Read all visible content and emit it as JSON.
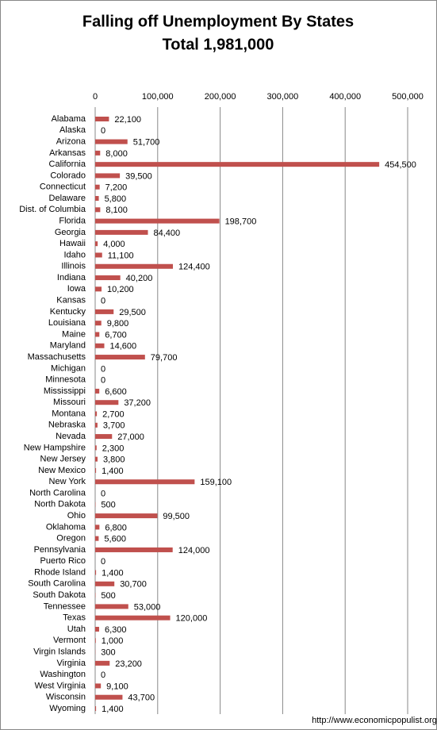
{
  "chart_data": {
    "type": "bar",
    "orientation": "horizontal",
    "title": "Falling off Unemployment By States",
    "subtitle": "Total  1,981,000",
    "source": "http://www.economicpopulist.org",
    "color": "#c0504d",
    "grid": true,
    "xlim": [
      0,
      500000
    ],
    "xticks": [
      0,
      {
        "value": 100000,
        "label": "100,000"
      },
      {
        "value": 200000,
        "label": "200,000"
      },
      {
        "value": 300000,
        "label": "300,000"
      },
      {
        "value": 400000,
        "label": "400,000"
      },
      {
        "value": 500000,
        "label": "500,000"
      }
    ],
    "categories": [
      "Alabama",
      "Alaska",
      "Arizona",
      "Arkansas",
      "California",
      "Colorado",
      "Connecticut",
      "Delaware",
      "Dist. of Columbia",
      "Florida",
      "Georgia",
      "Hawaii",
      "Idaho",
      "Illinois",
      "Indiana",
      "Iowa",
      "Kansas",
      "Kentucky",
      "Louisiana",
      "Maine",
      "Maryland",
      "Massachusetts",
      "Michigan",
      "Minnesota",
      "Mississippi",
      "Missouri",
      "Montana",
      "Nebraska",
      "Nevada",
      "New Hampshire",
      "New Jersey",
      "New Mexico",
      "New York",
      "North Carolina",
      "North Dakota",
      "Ohio",
      "Oklahoma",
      "Oregon",
      "Pennsylvania",
      "Puerto Rico",
      "Rhode Island",
      "South Carolina",
      "South Dakota",
      "Tennessee",
      "Texas",
      "Utah",
      "Vermont",
      "Virgin Islands",
      "Virginia",
      "Washington",
      "West Virginia",
      "Wisconsin",
      "Wyoming"
    ],
    "values": [
      22100,
      0,
      51700,
      8000,
      454500,
      39500,
      7200,
      5800,
      8100,
      198700,
      84400,
      4000,
      11100,
      124400,
      40200,
      10200,
      0,
      29500,
      9800,
      6700,
      14600,
      79700,
      0,
      0,
      6600,
      37200,
      2700,
      3700,
      27000,
      2300,
      3800,
      1400,
      159100,
      0,
      500,
      99500,
      6800,
      5600,
      124000,
      0,
      1400,
      30700,
      500,
      53000,
      120000,
      6300,
      1000,
      300,
      23200,
      0,
      9100,
      43700,
      1400
    ],
    "value_labels": [
      "22,100",
      "0",
      "51,700",
      "8,000",
      "454,500",
      "39,500",
      "7,200",
      "5,800",
      "8,100",
      "198,700",
      "84,400",
      "4,000",
      "11,100",
      "124,400",
      "40,200",
      "10,200",
      "0",
      "29,500",
      "9,800",
      "6,700",
      "14,600",
      "79,700",
      "0",
      "0",
      "6,600",
      "37,200",
      "2,700",
      "3,700",
      "27,000",
      "2,300",
      "3,800",
      "1,400",
      "159,100",
      "0",
      "500",
      "99,500",
      "6,800",
      "5,600",
      "124,000",
      "0",
      "1,400",
      "30,700",
      "500",
      "53,000",
      "120,000",
      "6,300",
      "1,000",
      "300",
      "23,200",
      "0",
      "9,100",
      "43,700",
      "1,400"
    ]
  }
}
